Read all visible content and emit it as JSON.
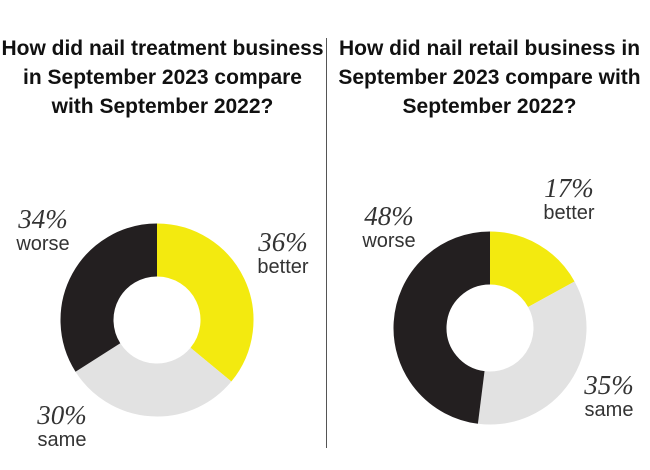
{
  "chart_data": [
    {
      "type": "pie",
      "title": "How did nail treatment business in September 2023 compare with September 2022?",
      "categories": [
        "better",
        "same",
        "worse"
      ],
      "values": [
        36,
        30,
        34
      ],
      "value_labels": [
        "36%",
        "30%",
        "34%"
      ],
      "colors": [
        "#f3ea0f",
        "#e2e2e2",
        "#231f20"
      ]
    },
    {
      "type": "pie",
      "title": "How did nail retail business in September 2023 compare with September 2022?",
      "categories": [
        "better",
        "same",
        "worse"
      ],
      "values": [
        17,
        35,
        48
      ],
      "value_labels": [
        "17%",
        "35%",
        "48%"
      ],
      "colors": [
        "#f3ea0f",
        "#e2e2e2",
        "#231f20"
      ]
    }
  ]
}
